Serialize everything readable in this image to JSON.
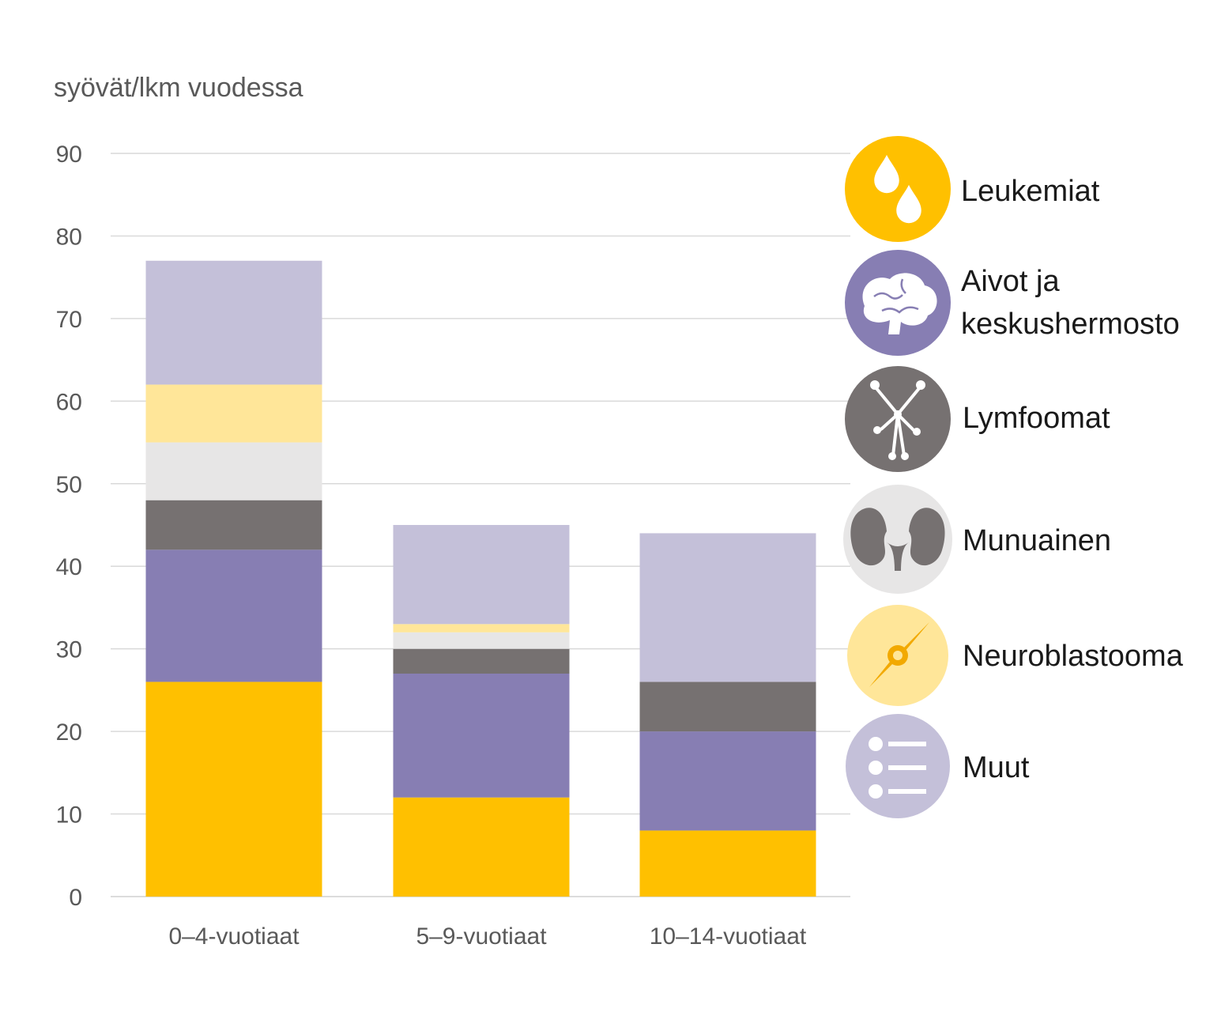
{
  "chart_data": {
    "type": "bar",
    "stacked": true,
    "ylabel": "syövät/lkm vuodessa",
    "xlabel": "",
    "ylim": [
      0,
      90
    ],
    "yticks": [
      0,
      10,
      20,
      30,
      40,
      50,
      60,
      70,
      80,
      90
    ],
    "grid": true,
    "legend_position": "right",
    "categories": [
      "0–4-vuotiaat",
      "5–9-vuotiaat",
      "10–14-vuotiaat"
    ],
    "series": [
      {
        "name": "Leukemiat",
        "color": "#FFC000",
        "icon": "droplets-icon",
        "values": [
          26,
          12,
          8
        ]
      },
      {
        "name": "Aivot ja keskushermosto",
        "color": "#877EB3",
        "icon": "brain-icon",
        "values": [
          16,
          15,
          12
        ]
      },
      {
        "name": "Lymfoomat",
        "color": "#767171",
        "icon": "lymph-node-icon",
        "values": [
          6,
          3,
          6
        ]
      },
      {
        "name": "Munuainen",
        "color": "#E7E6E6",
        "icon": "kidney-icon",
        "values": [
          7,
          2,
          0
        ]
      },
      {
        "name": "Neuroblastooma",
        "color": "#FFE699",
        "icon": "neuron-icon",
        "values": [
          7,
          1,
          0
        ]
      },
      {
        "name": "Muut",
        "color": "#C4C0D9",
        "icon": "list-icon",
        "values": [
          15,
          12,
          18
        ]
      }
    ],
    "legend_labels": {
      "Leukemiat": [
        "Leukemiat"
      ],
      "Aivot ja keskushermosto": [
        "Aivot ja",
        "keskushermosto"
      ],
      "Lymfoomat": [
        "Lymfoomat"
      ],
      "Munuainen": [
        "Munuainen"
      ],
      "Neuroblastooma": [
        "Neuroblastooma"
      ],
      "Muut": [
        "Muut"
      ]
    }
  }
}
